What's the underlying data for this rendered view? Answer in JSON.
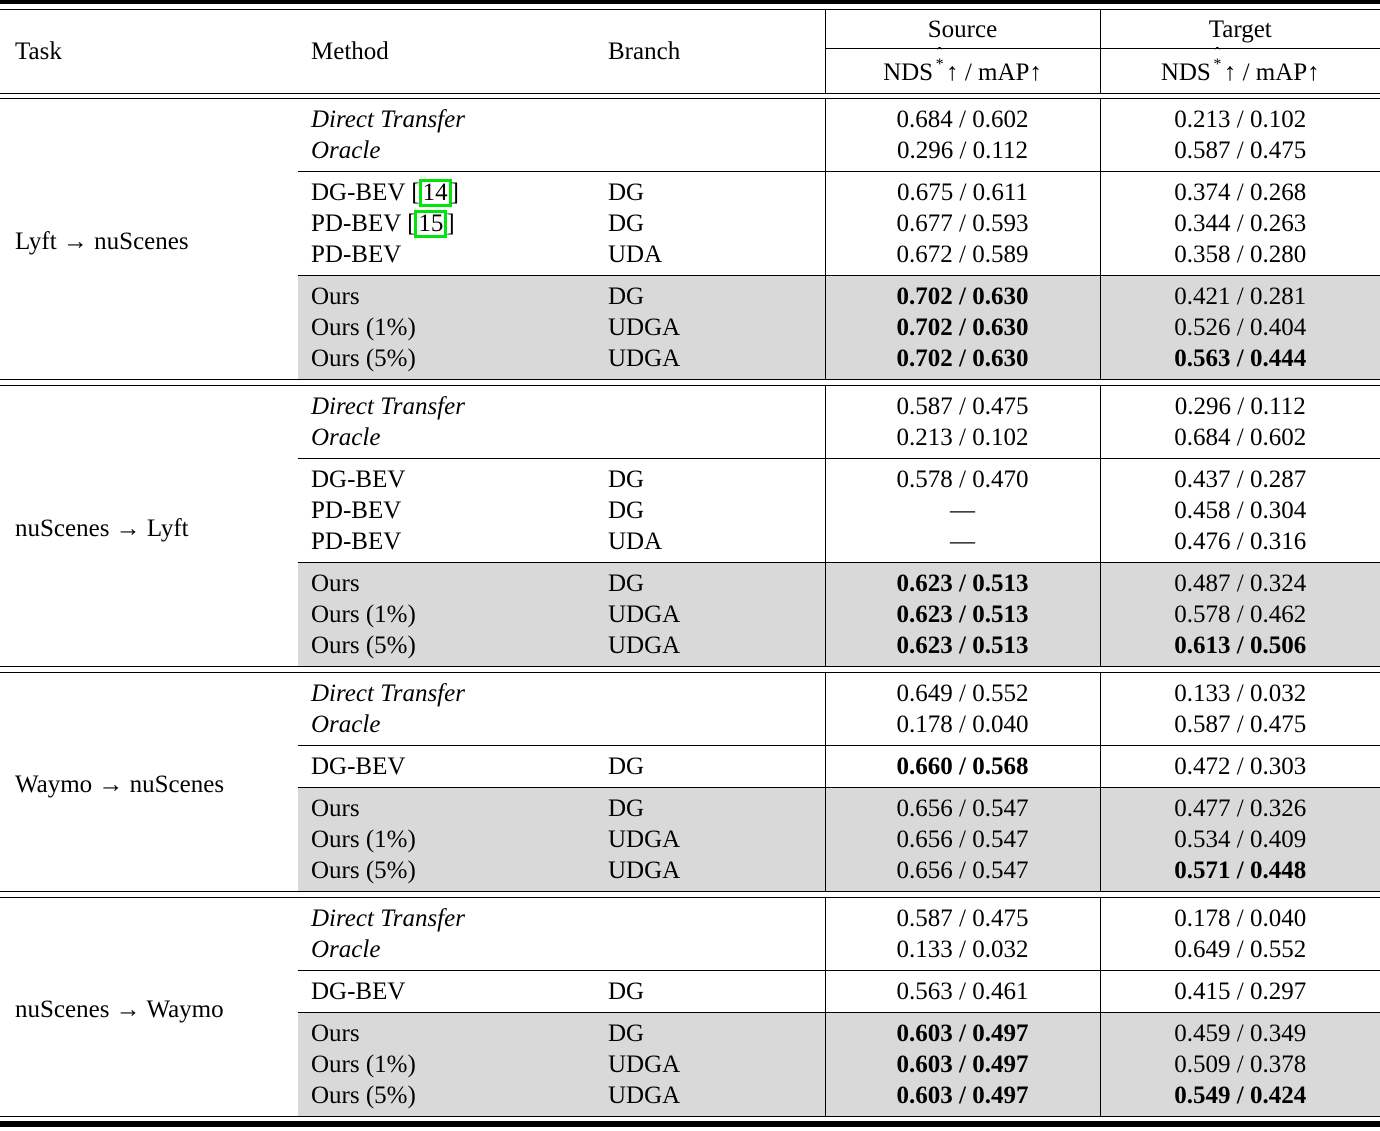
{
  "header": {
    "task": "Task",
    "method": "Method",
    "branch": "Branch",
    "source": "Source",
    "target": "Target",
    "metric": {
      "name": "NDS",
      "sup_hat": "ˆ",
      "sup_star": "*",
      "arrow": "↑",
      "separator": " / ",
      "map_label": "mAP",
      "arrow2": "↑"
    }
  },
  "colors": {
    "highlight_row": "#d9d9d9",
    "citation_box_green": "#00e60a",
    "rule_black": "#000000"
  },
  "sections": [
    {
      "task": "Lyft → nuScenes",
      "groups": [
        {
          "highlight": false,
          "rows": [
            {
              "method": "Direct Transfer",
              "italic": true,
              "branch": "",
              "source": "0.684 / 0.602",
              "target": "0.213 / 0.102",
              "source_bold": false,
              "target_bold": false
            },
            {
              "method": "Oracle",
              "italic": true,
              "branch": "",
              "source": "0.296 / 0.112",
              "target": "0.587 / 0.475",
              "source_bold": false,
              "target_bold": false
            }
          ]
        },
        {
          "highlight": false,
          "rows": [
            {
              "method": "DG-BEV",
              "cite": "14",
              "italic": false,
              "branch": "DG",
              "source": "0.675 / 0.611",
              "target": "0.374 / 0.268",
              "source_bold": false,
              "target_bold": false
            },
            {
              "method": "PD-BEV",
              "cite": "15",
              "italic": false,
              "branch": "DG",
              "source": "0.677 / 0.593",
              "target": "0.344 / 0.263",
              "source_bold": false,
              "target_bold": false
            },
            {
              "method": "PD-BEV",
              "italic": false,
              "branch": "UDA",
              "source": "0.672 / 0.589",
              "target": "0.358 / 0.280",
              "source_bold": false,
              "target_bold": false
            }
          ]
        },
        {
          "highlight": true,
          "rows": [
            {
              "method": "Ours",
              "italic": false,
              "branch": "DG",
              "source": "0.702 / 0.630",
              "target": "0.421 / 0.281",
              "source_bold": true,
              "target_bold": false
            },
            {
              "method": "Ours (1%)",
              "italic": false,
              "branch": "UDGA",
              "source": "0.702 / 0.630",
              "target": "0.526 / 0.404",
              "source_bold": true,
              "target_bold": false
            },
            {
              "method": "Ours (5%)",
              "italic": false,
              "branch": "UDGA",
              "source": "0.702 / 0.630",
              "target": "0.563 / 0.444",
              "source_bold": true,
              "target_bold": true
            }
          ]
        }
      ]
    },
    {
      "task": "nuScenes → Lyft",
      "groups": [
        {
          "highlight": false,
          "rows": [
            {
              "method": "Direct Transfer",
              "italic": true,
              "branch": "",
              "source": "0.587 / 0.475",
              "target": "0.296 / 0.112",
              "source_bold": false,
              "target_bold": false
            },
            {
              "method": "Oracle",
              "italic": true,
              "branch": "",
              "source": "0.213 / 0.102",
              "target": "0.684 / 0.602",
              "source_bold": false,
              "target_bold": false
            }
          ]
        },
        {
          "highlight": false,
          "rows": [
            {
              "method": "DG-BEV",
              "italic": false,
              "branch": "DG",
              "source": "0.578 / 0.470",
              "target": "0.437 / 0.287",
              "source_bold": false,
              "target_bold": false
            },
            {
              "method": "PD-BEV",
              "italic": false,
              "branch": "DG",
              "source": "—",
              "target": "0.458 / 0.304",
              "source_bold": false,
              "target_bold": false
            },
            {
              "method": "PD-BEV",
              "italic": false,
              "branch": "UDA",
              "source": "—",
              "target": "0.476 / 0.316",
              "source_bold": false,
              "target_bold": false
            }
          ]
        },
        {
          "highlight": true,
          "rows": [
            {
              "method": "Ours",
              "italic": false,
              "branch": "DG",
              "source": "0.623 / 0.513",
              "target": "0.487 / 0.324",
              "source_bold": true,
              "target_bold": false
            },
            {
              "method": "Ours (1%)",
              "italic": false,
              "branch": "UDGA",
              "source": "0.623 / 0.513",
              "target": "0.578 / 0.462",
              "source_bold": true,
              "target_bold": false
            },
            {
              "method": "Ours (5%)",
              "italic": false,
              "branch": "UDGA",
              "source": "0.623 / 0.513",
              "target": "0.613 / 0.506",
              "source_bold": true,
              "target_bold": true
            }
          ]
        }
      ]
    },
    {
      "task": "Waymo → nuScenes",
      "groups": [
        {
          "highlight": false,
          "rows": [
            {
              "method": "Direct Transfer",
              "italic": true,
              "branch": "",
              "source": "0.649 / 0.552",
              "target": "0.133 / 0.032",
              "source_bold": false,
              "target_bold": false
            },
            {
              "method": "Oracle",
              "italic": true,
              "branch": "",
              "source": "0.178 / 0.040",
              "target": "0.587 / 0.475",
              "source_bold": false,
              "target_bold": false
            }
          ]
        },
        {
          "highlight": false,
          "rows": [
            {
              "method": "DG-BEV",
              "italic": false,
              "branch": "DG",
              "source": "0.660 / 0.568",
              "target": "0.472 / 0.303",
              "source_bold": true,
              "target_bold": false
            }
          ]
        },
        {
          "highlight": true,
          "rows": [
            {
              "method": "Ours",
              "italic": false,
              "branch": "DG",
              "source": "0.656 / 0.547",
              "target": "0.477 / 0.326",
              "source_bold": false,
              "target_bold": false
            },
            {
              "method": "Ours (1%)",
              "italic": false,
              "branch": "UDGA",
              "source": "0.656 / 0.547",
              "target": "0.534 / 0.409",
              "source_bold": false,
              "target_bold": false
            },
            {
              "method": "Ours (5%)",
              "italic": false,
              "branch": "UDGA",
              "source": "0.656 / 0.547",
              "target": "0.571 / 0.448",
              "source_bold": false,
              "target_bold": true
            }
          ]
        }
      ]
    },
    {
      "task": "nuScenes → Waymo",
      "groups": [
        {
          "highlight": false,
          "rows": [
            {
              "method": "Direct Transfer",
              "italic": true,
              "branch": "",
              "source": "0.587 / 0.475",
              "target": "0.178 / 0.040",
              "source_bold": false,
              "target_bold": false
            },
            {
              "method": "Oracle",
              "italic": true,
              "branch": "",
              "source": "0.133 / 0.032",
              "target": "0.649 / 0.552",
              "source_bold": false,
              "target_bold": false
            }
          ]
        },
        {
          "highlight": false,
          "rows": [
            {
              "method": "DG-BEV",
              "italic": false,
              "branch": "DG",
              "source": "0.563 / 0.461",
              "target": "0.415 / 0.297",
              "source_bold": false,
              "target_bold": false
            }
          ]
        },
        {
          "highlight": true,
          "rows": [
            {
              "method": "Ours",
              "italic": false,
              "branch": "DG",
              "source": "0.603 / 0.497",
              "target": "0.459 / 0.349",
              "source_bold": true,
              "target_bold": false
            },
            {
              "method": "Ours (1%)",
              "italic": false,
              "branch": "UDGA",
              "source": "0.603 / 0.497",
              "target": "0.509 / 0.378",
              "source_bold": true,
              "target_bold": false
            },
            {
              "method": "Ours (5%)",
              "italic": false,
              "branch": "UDGA",
              "source": "0.603 / 0.497",
              "target": "0.549 / 0.424",
              "source_bold": true,
              "target_bold": true
            }
          ]
        }
      ]
    }
  ]
}
